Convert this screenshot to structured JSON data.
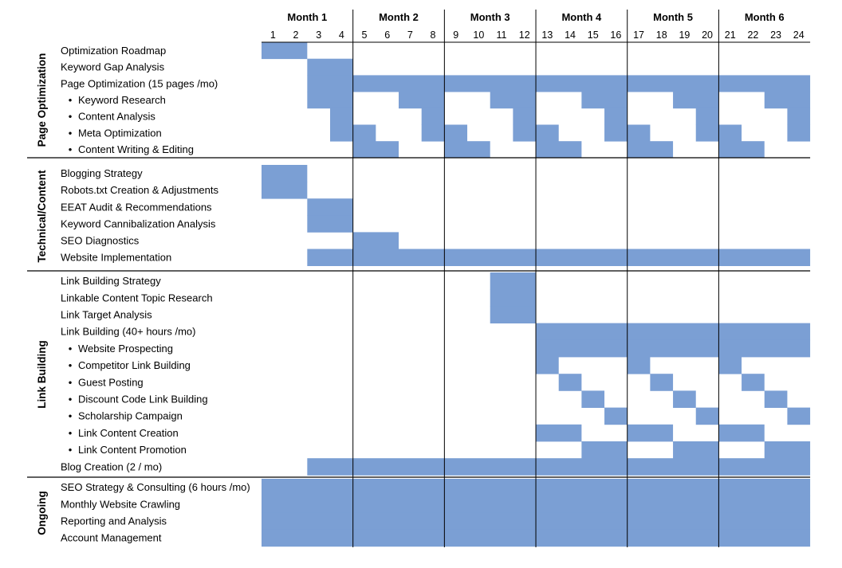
{
  "months": [
    "Month 1",
    "Month 2",
    "Month 3",
    "Month 4",
    "Month 5",
    "Month 6"
  ],
  "weeks": [
    "1",
    "2",
    "3",
    "4",
    "5",
    "6",
    "7",
    "8",
    "9",
    "10",
    "11",
    "12",
    "13",
    "14",
    "15",
    "16",
    "17",
    "18",
    "19",
    "20",
    "21",
    "22",
    "23",
    "24"
  ],
  "bar_color": "#7b9fd4",
  "sections": [
    {
      "name": "Page Optimization",
      "tasks": [
        {
          "label": "Optimization Roadmap",
          "sub": false,
          "weeks": [
            [
              1,
              2
            ]
          ]
        },
        {
          "label": "Keyword Gap Analysis",
          "sub": false,
          "weeks": [
            [
              3,
              4
            ]
          ]
        },
        {
          "label": "Page Optimization (15 pages /mo)",
          "sub": false,
          "weeks": [
            [
              3,
              24
            ]
          ]
        },
        {
          "label": "Keyword Research",
          "sub": true,
          "weeks": [
            [
              3,
              4
            ],
            [
              7,
              8
            ],
            [
              11,
              12
            ],
            [
              15,
              16
            ],
            [
              19,
              20
            ],
            [
              23,
              24
            ]
          ]
        },
        {
          "label": "Content Analysis",
          "sub": true,
          "weeks": [
            [
              4,
              4
            ],
            [
              8,
              8
            ],
            [
              12,
              12
            ],
            [
              16,
              16
            ],
            [
              20,
              20
            ],
            [
              24,
              24
            ]
          ]
        },
        {
          "label": "Meta Optimization",
          "sub": true,
          "weeks": [
            [
              4,
              5
            ],
            [
              8,
              9
            ],
            [
              12,
              13
            ],
            [
              16,
              17
            ],
            [
              20,
              21
            ],
            [
              24,
              24
            ]
          ]
        },
        {
          "label": "Content Writing & Editing",
          "sub": true,
          "weeks": [
            [
              5,
              6
            ],
            [
              9,
              10
            ],
            [
              13,
              14
            ],
            [
              17,
              18
            ],
            [
              21,
              22
            ]
          ]
        }
      ]
    },
    {
      "name": "Technical/Content",
      "tasks": [
        {
          "label": "Blogging Strategy",
          "sub": false,
          "weeks": [
            [
              1,
              2
            ]
          ]
        },
        {
          "label": "Robots.txt Creation & Adjustments",
          "sub": false,
          "weeks": [
            [
              1,
              2
            ]
          ]
        },
        {
          "label": "EEAT Audit & Recommendations",
          "sub": false,
          "weeks": [
            [
              3,
              4
            ]
          ]
        },
        {
          "label": "Keyword Cannibalization Analysis",
          "sub": false,
          "weeks": [
            [
              3,
              4
            ]
          ]
        },
        {
          "label": "SEO Diagnostics",
          "sub": false,
          "weeks": [
            [
              5,
              6
            ]
          ]
        },
        {
          "label": "Website Implementation",
          "sub": false,
          "weeks": [
            [
              3,
              24
            ]
          ]
        }
      ]
    },
    {
      "name": "Link Building",
      "tasks": [
        {
          "label": "Link Building Strategy",
          "sub": false,
          "weeks": [
            [
              11,
              12
            ]
          ]
        },
        {
          "label": "Linkable Content Topic Research",
          "sub": false,
          "weeks": [
            [
              11,
              12
            ]
          ]
        },
        {
          "label": "Link Target Analysis",
          "sub": false,
          "weeks": [
            [
              11,
              12
            ]
          ]
        },
        {
          "label": "Link Building (40+ hours /mo)",
          "sub": false,
          "weeks": [
            [
              13,
              24
            ]
          ]
        },
        {
          "label": "Website Prospecting",
          "sub": true,
          "weeks": [
            [
              13,
              24
            ]
          ]
        },
        {
          "label": "Competitor Link Building",
          "sub": true,
          "weeks": [
            [
              13,
              13
            ],
            [
              17,
              17
            ],
            [
              21,
              21
            ]
          ]
        },
        {
          "label": "Guest Posting",
          "sub": true,
          "weeks": [
            [
              14,
              14
            ],
            [
              18,
              18
            ],
            [
              22,
              22
            ]
          ]
        },
        {
          "label": "Discount Code Link Building",
          "sub": true,
          "weeks": [
            [
              15,
              15
            ],
            [
              19,
              19
            ],
            [
              23,
              23
            ]
          ]
        },
        {
          "label": "Scholarship Campaign",
          "sub": true,
          "weeks": [
            [
              16,
              16
            ],
            [
              20,
              20
            ],
            [
              24,
              24
            ]
          ]
        },
        {
          "label": "Link Content Creation",
          "sub": true,
          "weeks": [
            [
              13,
              14
            ],
            [
              17,
              18
            ],
            [
              21,
              22
            ]
          ]
        },
        {
          "label": "Link Content Promotion",
          "sub": true,
          "weeks": [
            [
              15,
              16
            ],
            [
              19,
              20
            ],
            [
              23,
              24
            ]
          ]
        },
        {
          "label": "Blog Creation (2 / mo)",
          "sub": false,
          "weeks": [
            [
              3,
              24
            ]
          ]
        }
      ]
    },
    {
      "name": "Ongoing",
      "tasks": [
        {
          "label": "SEO Strategy & Consulting (6 hours /mo)",
          "sub": false,
          "weeks": [
            [
              1,
              24
            ]
          ]
        },
        {
          "label": "Monthly Website Crawling",
          "sub": false,
          "weeks": [
            [
              1,
              24
            ]
          ]
        },
        {
          "label": "Reporting and Analysis",
          "sub": false,
          "weeks": [
            [
              1,
              24
            ]
          ]
        },
        {
          "label": "Account Management",
          "sub": false,
          "weeks": [
            [
              1,
              24
            ]
          ]
        }
      ]
    }
  ]
}
